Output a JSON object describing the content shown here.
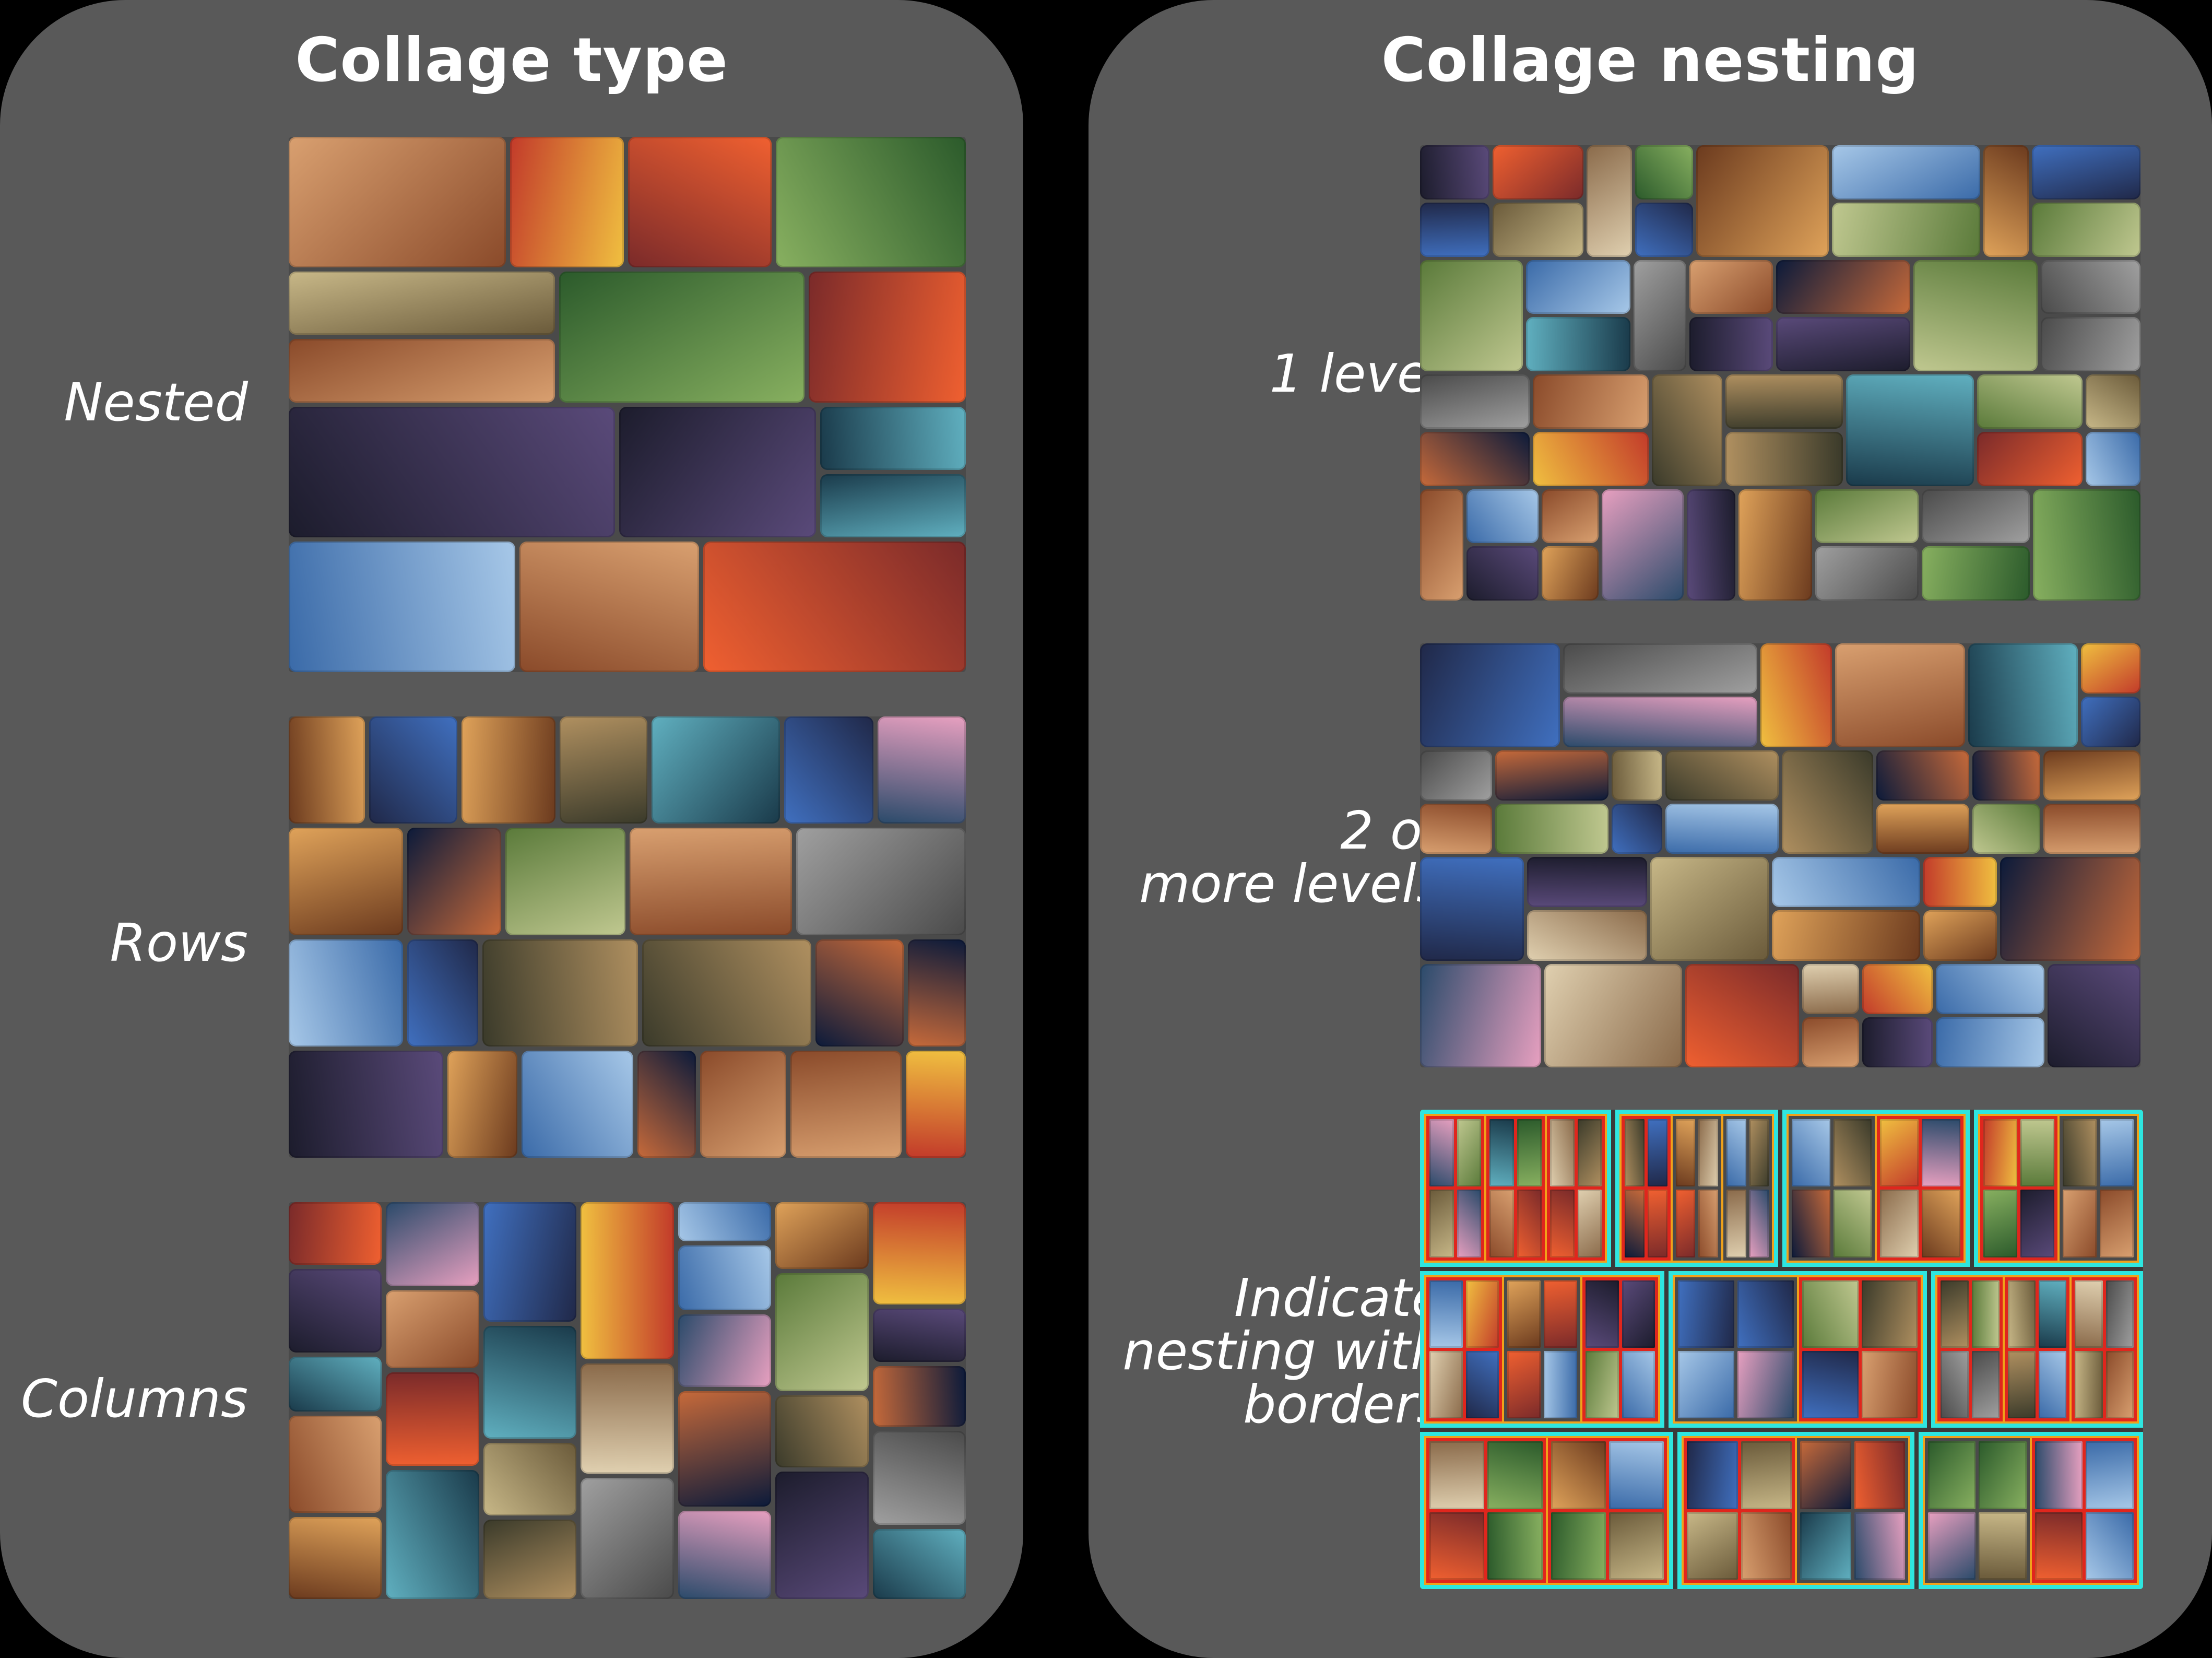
{
  "left_panel": {
    "title": "Collage type",
    "rows": [
      {
        "label": "Nested"
      },
      {
        "label": "Rows"
      },
      {
        "label": "Columns"
      }
    ]
  },
  "right_panel": {
    "title": "Collage nesting",
    "rows": [
      {
        "label": "1 level"
      },
      {
        "label": "2 or\nmore levels"
      },
      {
        "label": "Indicate\nnesting with\nborders"
      }
    ]
  },
  "colors": {
    "panel_background": "#595959",
    "page_background": "#000000",
    "nesting_border_outer": "#2ee6e0",
    "nesting_border_middle": "#f0a21a",
    "nesting_border_inner": "#e0261d"
  }
}
